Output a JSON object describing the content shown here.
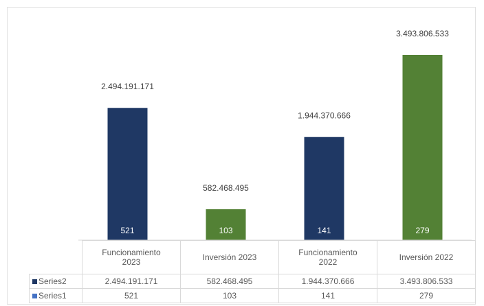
{
  "chart_data": {
    "type": "bar",
    "categories": [
      "Funcionamiento 2023",
      "Inversión 2023",
      "Funcionamiento 2022",
      "Inversión 2022"
    ],
    "category_lines": [
      [
        "Funcionamiento",
        "2023"
      ],
      [
        "Inversión 2023"
      ],
      [
        "Funcionamiento",
        "2022"
      ],
      [
        "Inversión 2022"
      ]
    ],
    "series": [
      {
        "name": "Series2",
        "values": [
          2494191171,
          582468495,
          1944370666,
          3493806533
        ],
        "labels": [
          "2.494.191.171",
          "582.468.495",
          "1.944.370.666",
          "3.493.806.533"
        ]
      },
      {
        "name": "Series1",
        "values": [
          521,
          103,
          141,
          279
        ],
        "labels": [
          "521",
          "103",
          "141",
          "279"
        ]
      }
    ],
    "bar_colors": [
      "#1f3864",
      "#538135",
      "#1f3864",
      "#538135"
    ],
    "series_colors": [
      "#1f3864",
      "#4472c4"
    ],
    "data_table": true,
    "legend": "table",
    "grid": false
  }
}
